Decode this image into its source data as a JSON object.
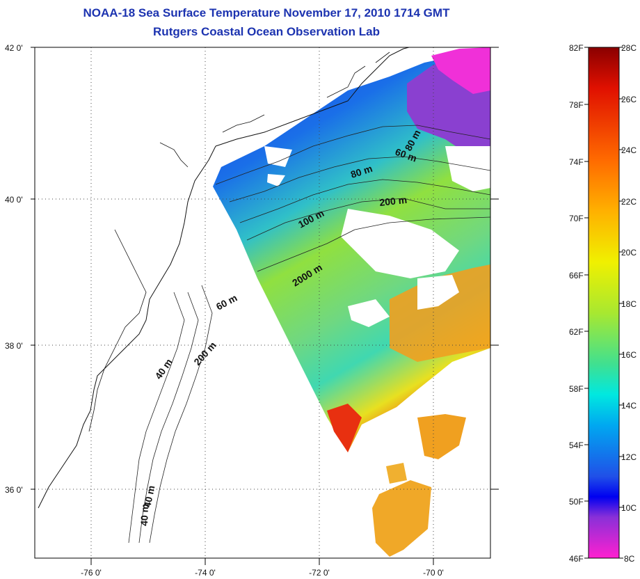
{
  "header": {
    "title": "NOAA-18 Sea Surface Temperature November 17, 2010 1714 GMT",
    "subtitle": "Rutgers Coastal Ocean Observation Lab"
  },
  "map": {
    "lon_range": [
      -77,
      -69
    ],
    "lat_range": [
      35,
      42
    ],
    "lat_tick_labels": [
      "42 0'",
      "40 0'",
      "38 0'",
      "36 0'"
    ],
    "lon_tick_labels": [
      "-76 0'",
      "-74 0'",
      "-72 0'",
      "-70 0'"
    ],
    "depth_labels": [
      "80 m",
      "60 m",
      "80 m",
      "200 m",
      "100 m",
      "2000 m",
      "60 m",
      "40 m",
      "200 m",
      "40 m",
      "40 m"
    ],
    "grid": "dotted"
  },
  "colorbar": {
    "fahrenheit_labels": [
      "82F",
      "78F",
      "74F",
      "70F",
      "66F",
      "62F",
      "58F",
      "54F",
      "50F",
      "46F"
    ],
    "celsius_labels": [
      "28C",
      "26C",
      "24C",
      "22C",
      "20C",
      "18C",
      "16C",
      "14C",
      "12C",
      "10C",
      "8C"
    ],
    "range_c": [
      8,
      28
    ],
    "colors_top_to_bottom": [
      "#8a0000",
      "#e01000",
      "#ff6a00",
      "#ffb000",
      "#f0f000",
      "#a8e830",
      "#40e090",
      "#00e8e0",
      "#00a8f0",
      "#2050e8",
      "#0000f0",
      "#8a30d8",
      "#ff20d0"
    ]
  }
}
